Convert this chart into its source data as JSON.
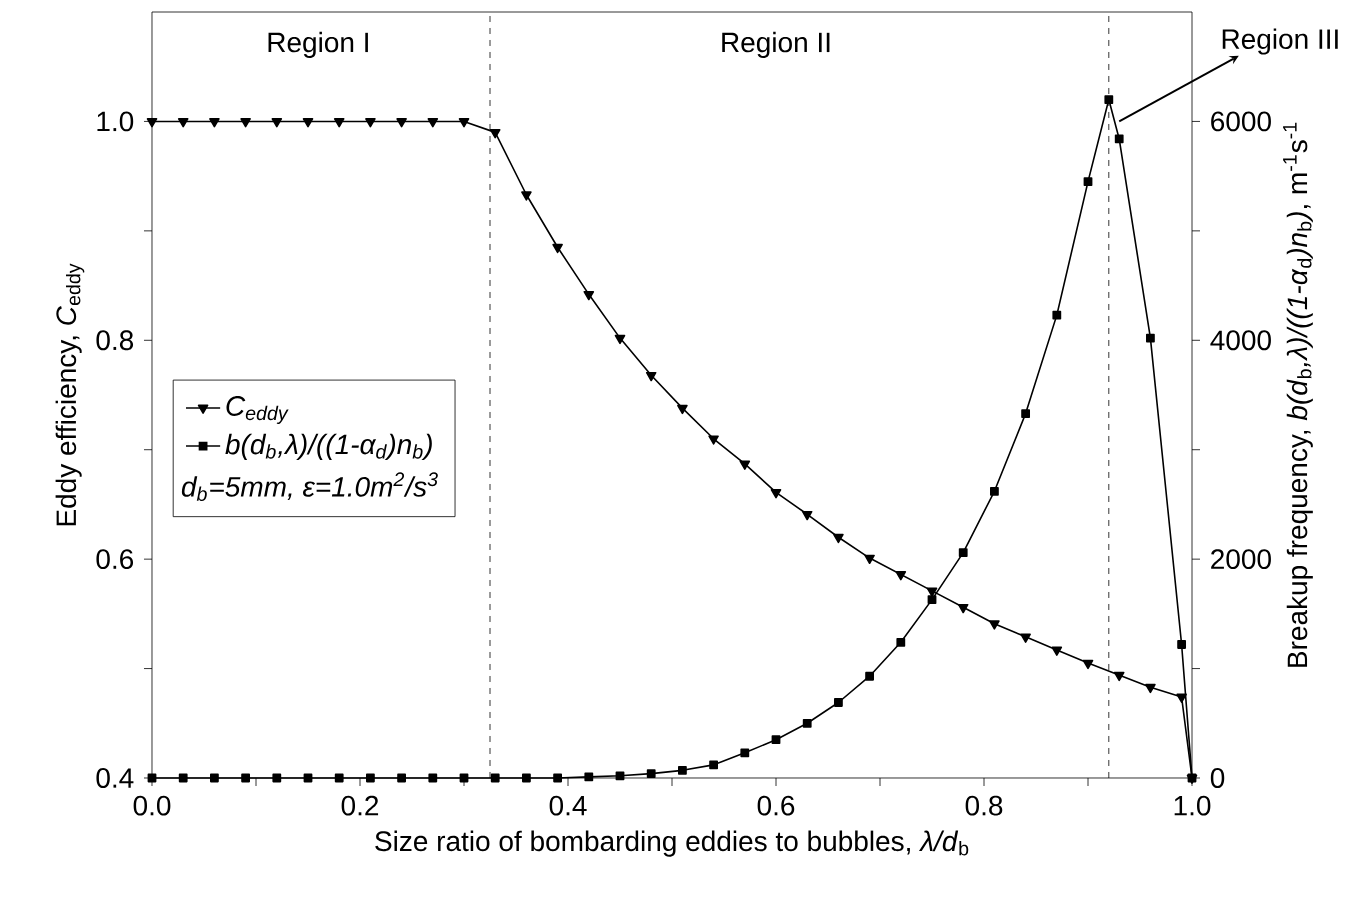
{
  "chart_data": {
    "type": "line",
    "xlabel": "Size ratio of bombarding eddies to bubbles, *λ/d*$_{b}$",
    "ylabel": "Eddy efficiency, *C*$_{eddy}$",
    "y2label": "Breakup frequency, *b(d*$_{b}$*,λ)/((1-α*$_{d}$*)n*$_{b}$*)*, m$^{-1}$s$^{-1}$",
    "xlim": [
      0,
      1
    ],
    "ylim": [
      0.4,
      1.1
    ],
    "y2lim": [
      0,
      7000
    ],
    "xticks": [
      {
        "value": 0,
        "label": "0.0"
      },
      {
        "value": 0.1,
        "label": null
      },
      {
        "value": 0.2,
        "label": "0.2"
      },
      {
        "value": 0.3,
        "label": null
      },
      {
        "value": 0.4,
        "label": "0.4"
      },
      {
        "value": 0.5,
        "label": null
      },
      {
        "value": 0.6,
        "label": "0.6"
      },
      {
        "value": 0.7,
        "label": null
      },
      {
        "value": 0.8,
        "label": "0.8"
      },
      {
        "value": 0.9,
        "label": null
      },
      {
        "value": 1,
        "label": "1.0"
      }
    ],
    "yticks": [
      0.4,
      {
        "value": 0.5,
        "label": null
      },
      0.6,
      {
        "value": 0.7,
        "label": null
      },
      0.8,
      {
        "value": 0.9,
        "label": null
      },
      {
        "value": 1,
        "label": "1.0"
      }
    ],
    "y2ticks": [
      0,
      {
        "value": 1000,
        "label": null
      },
      2000,
      {
        "value": 3000,
        "label": null
      },
      4000,
      {
        "value": 5000,
        "label": null
      },
      6000
    ],
    "legend": "left",
    "ref_lines": [
      {
        "axis": "x",
        "value": 0.325,
        "line_style": "dashed"
      },
      {
        "axis": "x",
        "value": 0.92,
        "line_style": "dashed"
      }
    ],
    "annotations": [
      "Region I",
      "Region II",
      {
        "text": "Region III",
        "x": 0.93,
        "y": 1.0
      },
      "d$_{b}$=5mm, ε=1.0m$^{2}$/s$^{3}$"
    ],
    "series": [
      {
        "name": "C$_{eddy}$",
        "color": "#000000",
        "marker": "triangle",
        "x": [
          0,
          0.03,
          0.06,
          0.09,
          0.12,
          0.15,
          0.18,
          0.21,
          0.24,
          0.27,
          0.3,
          0.33,
          0.36,
          0.39,
          0.42,
          0.45,
          0.48,
          0.51,
          0.54,
          0.57,
          0.6,
          0.63,
          0.66,
          0.69,
          0.72,
          0.75,
          0.78,
          0.81,
          0.84,
          0.87,
          0.9,
          0.93,
          0.96,
          0.99,
          1.0
        ],
        "values": [
          1,
          1,
          1,
          1,
          1,
          1,
          1,
          1,
          1,
          1,
          1,
          0.99,
          0.933,
          0.885,
          0.842,
          0.802,
          0.768,
          0.738,
          0.71,
          0.687,
          0.661,
          0.641,
          0.62,
          0.601,
          0.586,
          0.571,
          0.556,
          0.541,
          0.529,
          0.517,
          0.505,
          0.494,
          0.483,
          0.474,
          0.4
        ]
      },
      {
        "name": "b(d$_{b}$,λ)/((1-α$_{d}$)n$_{b}$)",
        "color": "#000000",
        "marker": "square",
        "axis": "y2",
        "x": [
          0,
          0.03,
          0.06,
          0.09,
          0.12,
          0.15,
          0.18,
          0.21,
          0.24,
          0.27,
          0.3,
          0.33,
          0.36,
          0.39,
          0.42,
          0.45,
          0.48,
          0.51,
          0.54,
          0.57,
          0.6,
          0.63,
          0.66,
          0.69,
          0.72,
          0.75,
          0.78,
          0.81,
          0.84,
          0.87,
          0.9,
          0.92,
          0.93,
          0.96,
          0.99,
          1.0
        ],
        "values": [
          0,
          0,
          0,
          0,
          0,
          0,
          0,
          0,
          0,
          0,
          0,
          0,
          0,
          0,
          10,
          20,
          40,
          70,
          120,
          230,
          350,
          500,
          690,
          930,
          1240,
          1630,
          2060,
          2620,
          3330,
          4230,
          5450,
          6200,
          5840,
          4020,
          1220,
          0
        ]
      }
    ]
  }
}
